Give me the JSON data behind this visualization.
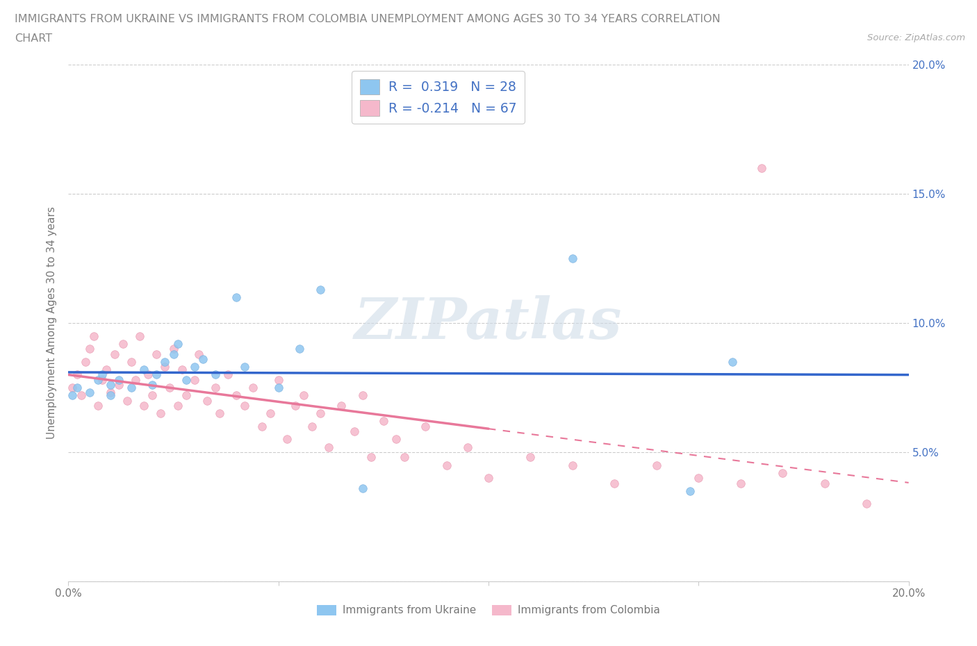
{
  "title_line1": "IMMIGRANTS FROM UKRAINE VS IMMIGRANTS FROM COLOMBIA UNEMPLOYMENT AMONG AGES 30 TO 34 YEARS CORRELATION",
  "title_line2": "CHART",
  "source": "Source: ZipAtlas.com",
  "ylabel": "Unemployment Among Ages 30 to 34 years",
  "xlim": [
    0.0,
    0.2
  ],
  "ylim": [
    0.0,
    0.2
  ],
  "ukraine_color": "#8ec6f0",
  "ukraine_edge_color": "#7ab0de",
  "colombia_color": "#f5b8cb",
  "colombia_edge_color": "#e898b0",
  "ukraine_line_color": "#3366cc",
  "colombia_line_color": "#e8789a",
  "ukraine_R": 0.319,
  "ukraine_N": 28,
  "colombia_R": -0.214,
  "colombia_N": 67,
  "ukraine_x": [
    0.001,
    0.002,
    0.005,
    0.007,
    0.008,
    0.01,
    0.01,
    0.012,
    0.015,
    0.018,
    0.02,
    0.021,
    0.023,
    0.025,
    0.026,
    0.028,
    0.03,
    0.032,
    0.035,
    0.04,
    0.042,
    0.05,
    0.055,
    0.06,
    0.07,
    0.12,
    0.148,
    0.158
  ],
  "ukraine_y": [
    0.072,
    0.075,
    0.073,
    0.078,
    0.08,
    0.072,
    0.076,
    0.078,
    0.075,
    0.082,
    0.076,
    0.08,
    0.085,
    0.088,
    0.092,
    0.078,
    0.083,
    0.086,
    0.08,
    0.11,
    0.083,
    0.075,
    0.09,
    0.113,
    0.036,
    0.125,
    0.035,
    0.085
  ],
  "colombia_x": [
    0.001,
    0.002,
    0.003,
    0.004,
    0.005,
    0.006,
    0.007,
    0.008,
    0.009,
    0.01,
    0.011,
    0.012,
    0.013,
    0.014,
    0.015,
    0.016,
    0.017,
    0.018,
    0.019,
    0.02,
    0.021,
    0.022,
    0.023,
    0.024,
    0.025,
    0.026,
    0.027,
    0.028,
    0.03,
    0.031,
    0.033,
    0.035,
    0.036,
    0.038,
    0.04,
    0.042,
    0.044,
    0.046,
    0.048,
    0.05,
    0.052,
    0.054,
    0.056,
    0.058,
    0.06,
    0.062,
    0.065,
    0.068,
    0.07,
    0.072,
    0.075,
    0.078,
    0.08,
    0.085,
    0.09,
    0.095,
    0.1,
    0.11,
    0.12,
    0.13,
    0.14,
    0.15,
    0.16,
    0.165,
    0.17,
    0.18,
    0.19
  ],
  "colombia_y": [
    0.075,
    0.08,
    0.072,
    0.085,
    0.09,
    0.095,
    0.068,
    0.078,
    0.082,
    0.073,
    0.088,
    0.076,
    0.092,
    0.07,
    0.085,
    0.078,
    0.095,
    0.068,
    0.08,
    0.072,
    0.088,
    0.065,
    0.083,
    0.075,
    0.09,
    0.068,
    0.082,
    0.072,
    0.078,
    0.088,
    0.07,
    0.075,
    0.065,
    0.08,
    0.072,
    0.068,
    0.075,
    0.06,
    0.065,
    0.078,
    0.055,
    0.068,
    0.072,
    0.06,
    0.065,
    0.052,
    0.068,
    0.058,
    0.072,
    0.048,
    0.062,
    0.055,
    0.048,
    0.06,
    0.045,
    0.052,
    0.04,
    0.048,
    0.045,
    0.038,
    0.045,
    0.04,
    0.038,
    0.16,
    0.042,
    0.038,
    0.03
  ],
  "watermark_text": "ZIPatlas",
  "watermark_color": "#d0dce8",
  "background_color": "#ffffff",
  "grid_color": "#cccccc",
  "legend_text_color": "#4472c4",
  "axis_label_color": "#777777",
  "tick_label_color": "#4472c4",
  "title_color": "#888888"
}
